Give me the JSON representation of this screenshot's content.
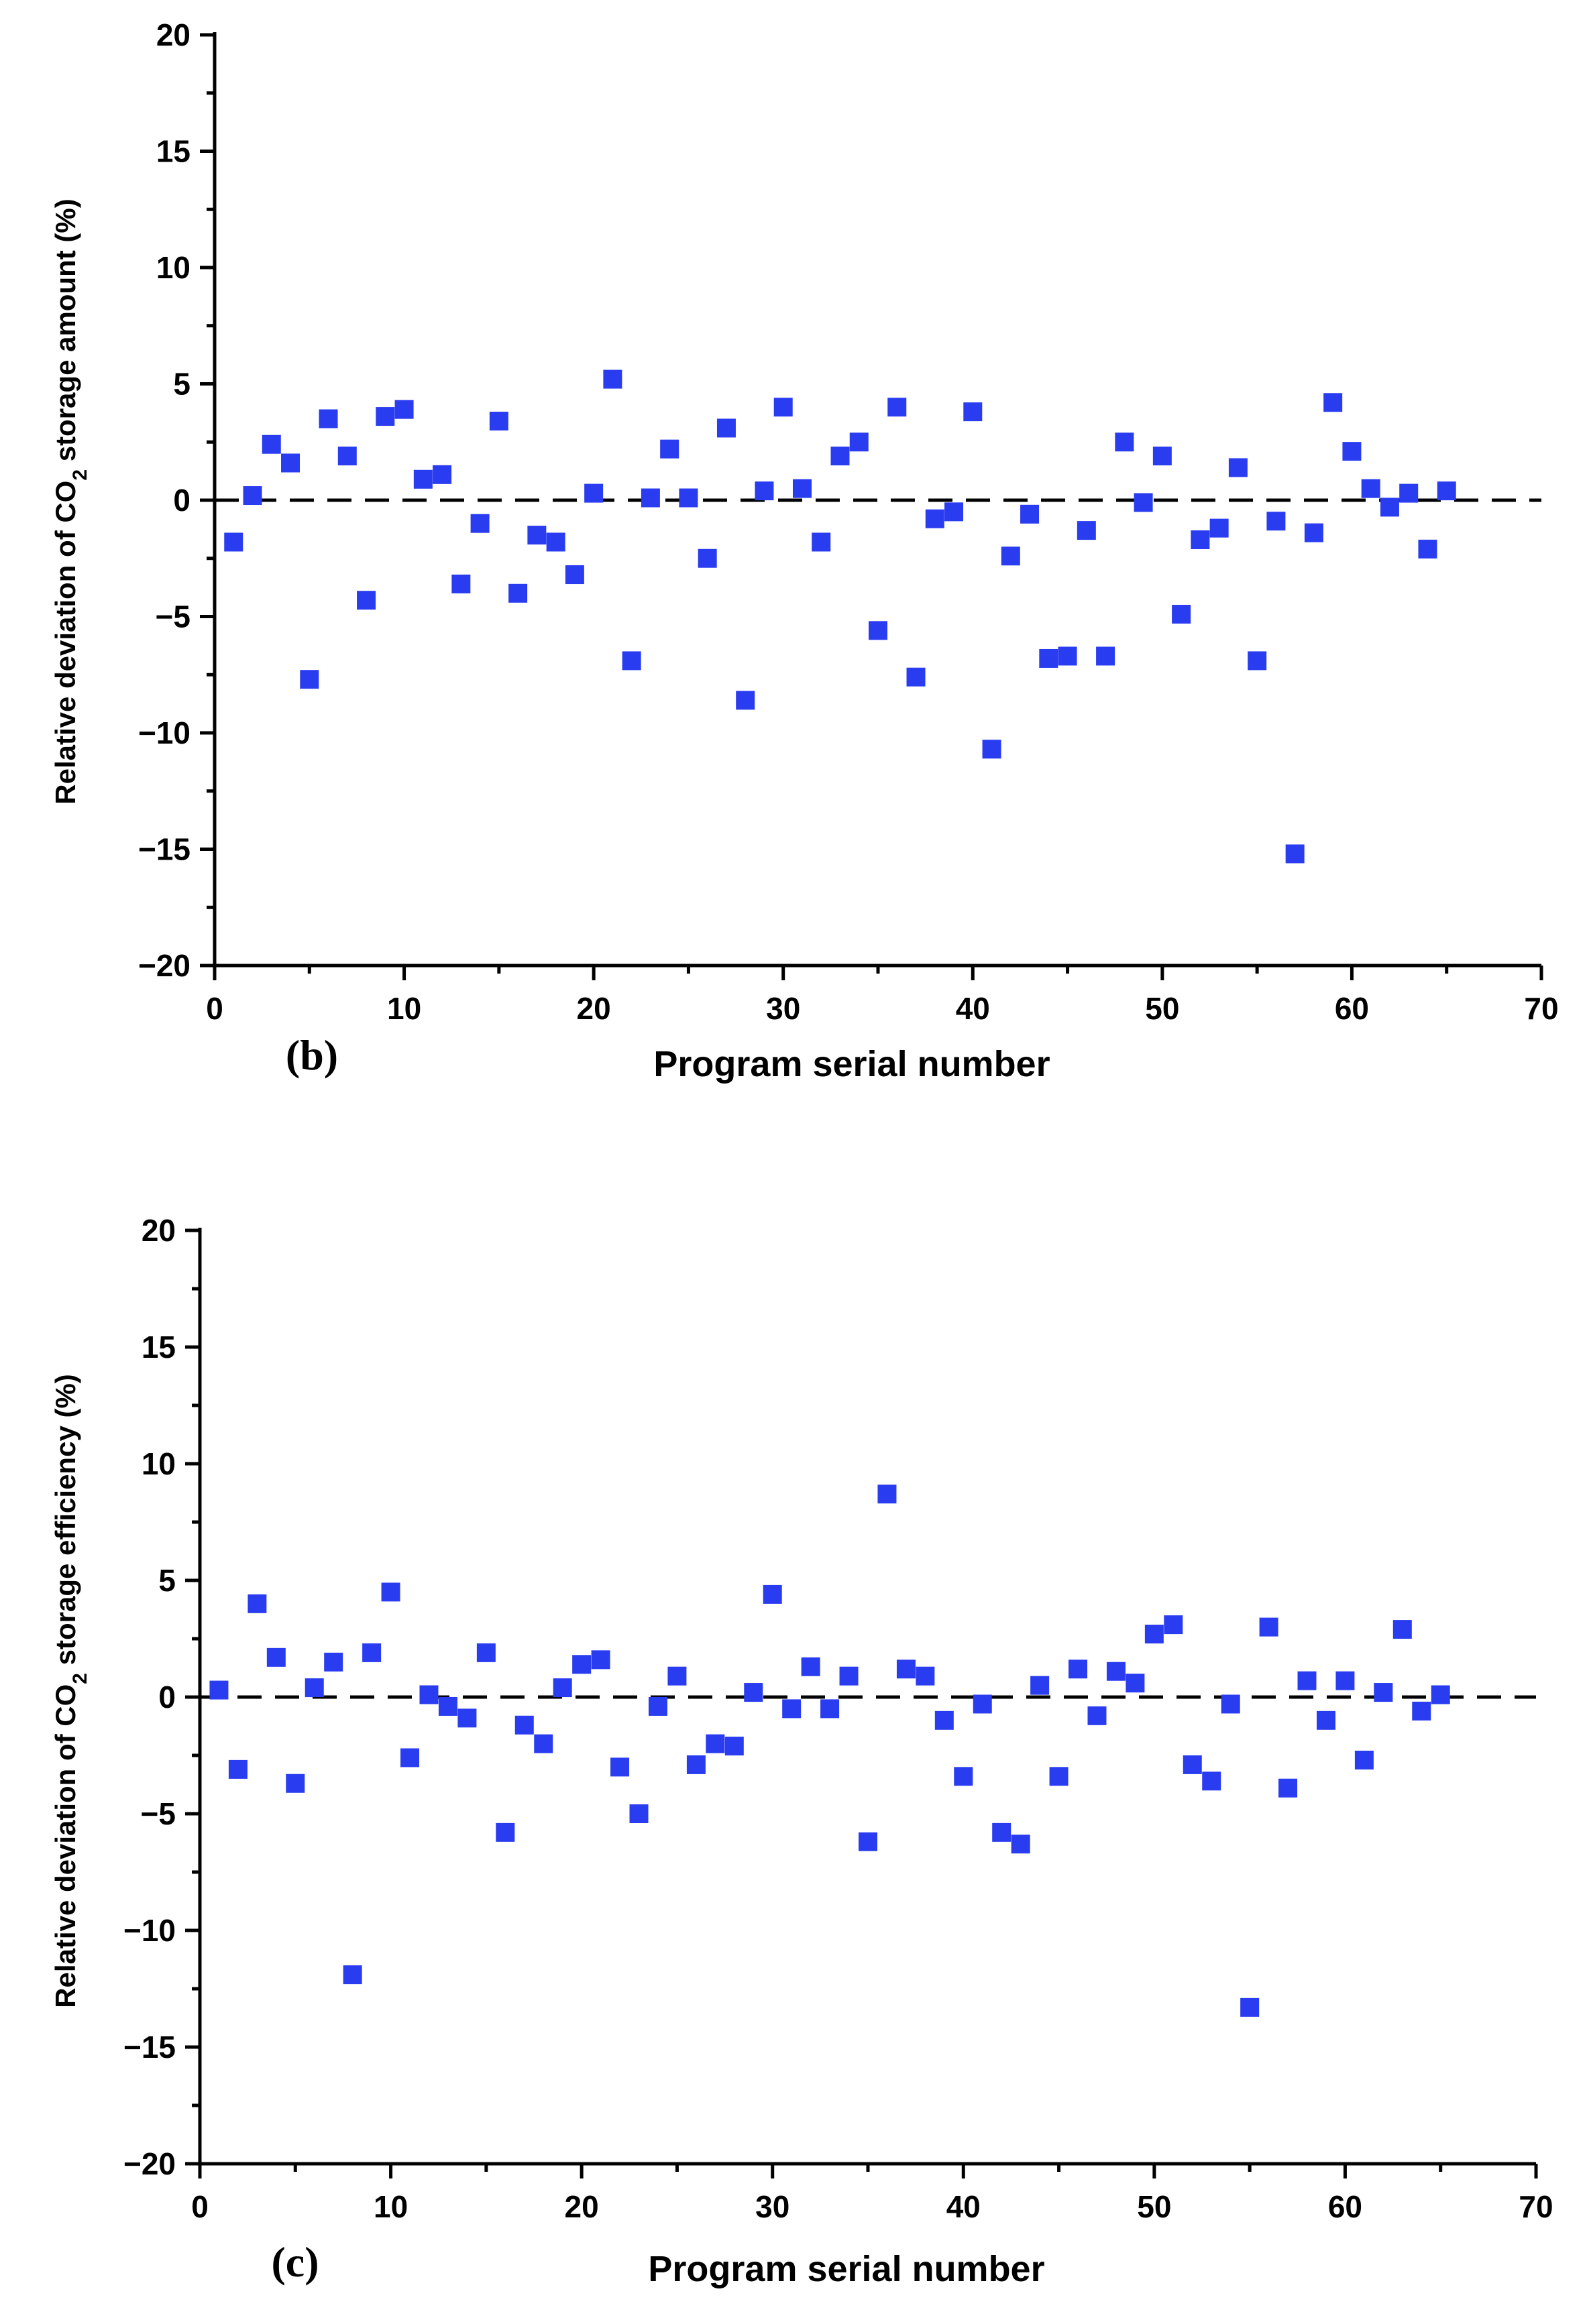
{
  "chart_data": [
    {
      "type": "scatter",
      "panel_label": "(b)",
      "xlabel": "Program serial number",
      "ylabel_prefix": "Relative deviation of CO",
      "ylabel_sub": "2",
      "ylabel_suffix": " storage amount (%)",
      "xlim": [
        0,
        70
      ],
      "ylim": [
        -20,
        20
      ],
      "xticks": [
        0,
        10,
        20,
        30,
        40,
        50,
        60,
        70
      ],
      "yticks": [
        -20,
        -15,
        -10,
        -5,
        0,
        5,
        10,
        15,
        20
      ],
      "reference_line": 0,
      "marker_color": "#2a3cf0",
      "x": [
        1,
        2,
        3,
        4,
        5,
        6,
        7,
        8,
        9,
        10,
        11,
        12,
        13,
        14,
        15,
        16,
        17,
        18,
        19,
        20,
        21,
        22,
        23,
        24,
        25,
        26,
        27,
        28,
        29,
        30,
        31,
        32,
        33,
        34,
        35,
        36,
        37,
        38,
        39,
        40,
        41,
        42,
        43,
        44,
        45,
        46,
        47,
        48,
        49,
        50,
        51,
        52,
        53,
        54,
        55,
        56,
        57,
        58,
        59,
        60,
        61,
        62,
        63,
        64,
        65
      ],
      "y": [
        -1.8,
        0.2,
        2.4,
        1.6,
        -7.7,
        3.5,
        1.9,
        -4.3,
        3.6,
        3.9,
        0.9,
        1.1,
        -3.6,
        -1.0,
        3.4,
        -4.0,
        -1.5,
        -1.8,
        -3.2,
        0.3,
        5.2,
        -6.9,
        0.1,
        2.2,
        0.1,
        -2.5,
        3.1,
        -8.6,
        0.4,
        4.0,
        0.5,
        -1.8,
        1.9,
        2.5,
        -5.6,
        4.0,
        -7.6,
        -0.8,
        -0.5,
        3.8,
        -10.7,
        -2.4,
        -0.6,
        -6.8,
        -6.7,
        -1.3,
        -6.7,
        2.5,
        -0.1,
        1.9,
        -4.9,
        -1.7,
        -1.2,
        1.4,
        -6.9,
        -0.9,
        -15.2,
        -1.4,
        4.2,
        2.1,
        0.5,
        -0.3,
        0.3,
        -2.1,
        0.4
      ]
    },
    {
      "type": "scatter",
      "panel_label": "(c)",
      "xlabel": "Program serial number",
      "ylabel_prefix": "Relative deviation of CO",
      "ylabel_sub": "2",
      "ylabel_suffix": " storage efficiency (%)",
      "xlim": [
        0,
        70
      ],
      "ylim": [
        -20,
        20
      ],
      "xticks": [
        0,
        10,
        20,
        30,
        40,
        50,
        60,
        70
      ],
      "yticks": [
        -20,
        -15,
        -10,
        -5,
        0,
        5,
        10,
        15,
        20
      ],
      "reference_line": 0,
      "marker_color": "#2a3cf0",
      "x": [
        1,
        2,
        3,
        4,
        5,
        6,
        7,
        8,
        9,
        10,
        11,
        12,
        13,
        14,
        15,
        16,
        17,
        18,
        19,
        20,
        21,
        22,
        23,
        24,
        25,
        26,
        27,
        28,
        29,
        30,
        31,
        32,
        33,
        34,
        35,
        36,
        37,
        38,
        39,
        40,
        41,
        42,
        43,
        44,
        45,
        46,
        47,
        48,
        49,
        50,
        51,
        52,
        53,
        54,
        55,
        56,
        57,
        58,
        59,
        60,
        61,
        62,
        63,
        64,
        65
      ],
      "y": [
        0.3,
        -3.1,
        4.0,
        1.7,
        -3.7,
        0.4,
        1.5,
        -11.9,
        1.9,
        4.5,
        -2.6,
        0.1,
        -0.4,
        -0.9,
        1.9,
        -5.8,
        -1.2,
        -2.0,
        0.4,
        1.4,
        1.6,
        -3.0,
        -5.0,
        -0.4,
        0.9,
        -2.9,
        -2.0,
        -2.1,
        0.2,
        4.4,
        -0.5,
        1.3,
        -0.5,
        0.9,
        -6.2,
        8.7,
        1.2,
        0.9,
        -1.0,
        -3.4,
        -0.3,
        -5.8,
        -6.3,
        0.5,
        -3.4,
        1.2,
        -0.8,
        1.1,
        0.6,
        2.7,
        3.1,
        -2.9,
        -3.6,
        -0.3,
        -13.3,
        3.0,
        -3.9,
        0.7,
        -1.0,
        0.7,
        -2.7,
        0.2,
        2.9,
        -0.6,
        0.1
      ]
    }
  ]
}
